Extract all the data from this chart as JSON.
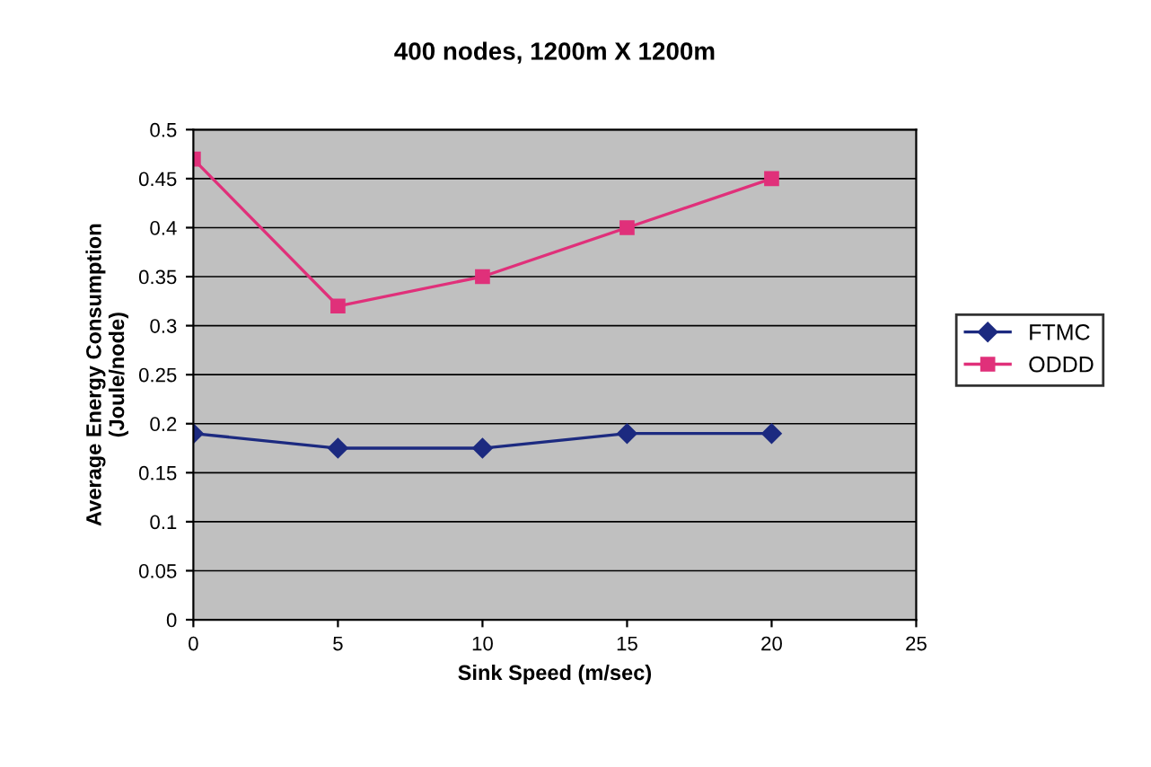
{
  "chart_data": {
    "type": "line",
    "title": "400 nodes, 1200m X 1200m",
    "xlabel": "Sink Speed (m/sec)",
    "ylabel": "Average Energy Consumption\n(Joule/node)",
    "x": [
      0,
      5,
      10,
      15,
      20
    ],
    "series": [
      {
        "name": "FTMC",
        "color": "#1c2a80",
        "marker": "diamond",
        "values": [
          0.19,
          0.175,
          0.175,
          0.19,
          0.19
        ]
      },
      {
        "name": "ODDD",
        "color": "#e0307a",
        "marker": "square",
        "values": [
          0.47,
          0.32,
          0.35,
          0.4,
          0.45
        ]
      }
    ],
    "xlim": [
      0,
      25
    ],
    "xticks": [
      0,
      5,
      10,
      15,
      20,
      25
    ],
    "ylim": [
      0,
      0.5
    ],
    "yticks": [
      0,
      0.05,
      0.1,
      0.15,
      0.2,
      0.25,
      0.3,
      0.35,
      0.4,
      0.45,
      0.5
    ],
    "grid": "y",
    "legend": "right",
    "line_style": "solid"
  }
}
